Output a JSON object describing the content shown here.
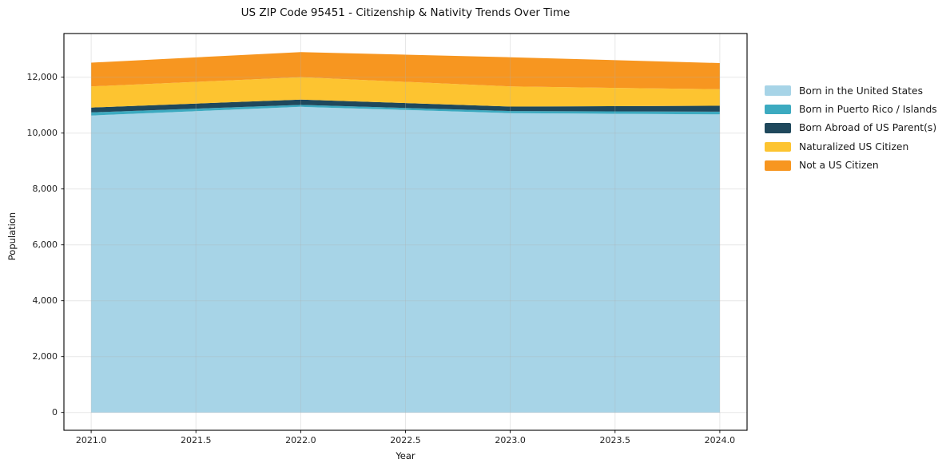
{
  "title": "US ZIP Code 95451 - Citizenship & Nativity Trends Over Time",
  "x_axis": {
    "label": "Year",
    "tick_values": [
      2021.0,
      2021.5,
      2022.0,
      2022.5,
      2023.0,
      2023.5,
      2024.0
    ],
    "tick_labels": [
      "2021.0",
      "2021.5",
      "2022.0",
      "2022.5",
      "2023.0",
      "2023.5",
      "2024.0"
    ]
  },
  "y_axis": {
    "label": "Population",
    "tick_values": [
      0,
      2000,
      4000,
      6000,
      8000,
      10000,
      12000
    ],
    "tick_labels": [
      "0",
      "2,000",
      "4,000",
      "6,000",
      "8,000",
      "10,000",
      "12,000"
    ]
  },
  "legend": {
    "items": [
      {
        "label": "Born in the United States",
        "color": "#a7d4e7"
      },
      {
        "label": "Born in Puerto Rico / Islands",
        "color": "#3caac0"
      },
      {
        "label": "Born Abroad of US Parent(s)",
        "color": "#1f485c"
      },
      {
        "label": "Naturalized US Citizen",
        "color": "#fdc430"
      },
      {
        "label": "Not a US Citizen",
        "color": "#f79620"
      }
    ]
  },
  "chart_data": {
    "type": "area",
    "stacked": true,
    "title": "US ZIP Code 95451 - Citizenship & Nativity Trends Over Time",
    "xlabel": "Year",
    "ylabel": "Population",
    "x": [
      2021,
      2022,
      2023,
      2024
    ],
    "series": [
      {
        "name": "Born in the United States",
        "color": "#a7d4e7",
        "values": [
          10630,
          10940,
          10715,
          10670
        ]
      },
      {
        "name": "Born in Puerto Rico / Islands",
        "color": "#3caac0",
        "values": [
          110,
          70,
          75,
          95
        ]
      },
      {
        "name": "Born Abroad of US Parent(s)",
        "color": "#1f485c",
        "values": [
          175,
          190,
          160,
          215
        ]
      },
      {
        "name": "Naturalized US Citizen",
        "color": "#fdc430",
        "values": [
          755,
          800,
          720,
          590
        ]
      },
      {
        "name": "Not a US Citizen",
        "color": "#f79620",
        "values": [
          850,
          900,
          1045,
          935
        ]
      }
    ],
    "totals": [
      12520,
      12900,
      12715,
      12505
    ],
    "xlim": [
      2020.87,
      2024.13
    ],
    "ylim": [
      -637,
      13563
    ],
    "grid": true,
    "grid_color": "#b0b0b0",
    "grid_alpha": 0.3,
    "legend_position": "right-outside"
  }
}
